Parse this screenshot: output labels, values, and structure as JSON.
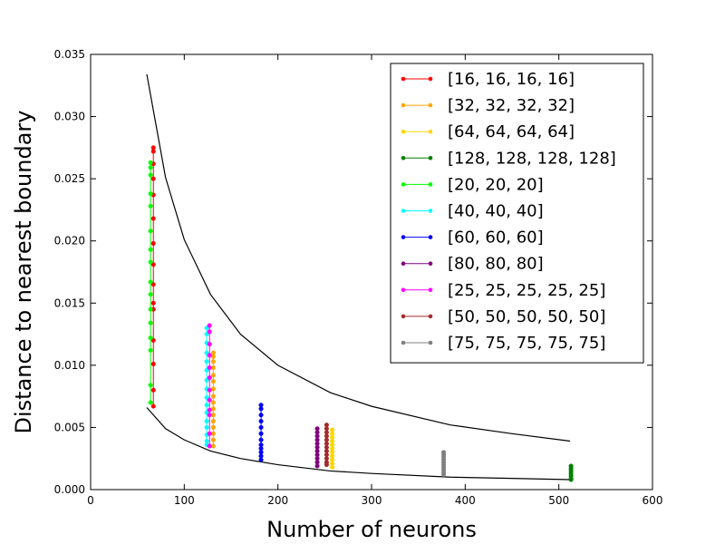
{
  "chart_data": {
    "type": "scatter",
    "title": "",
    "xlabel": "Number of neurons",
    "ylabel": "Distance to nearest boundary",
    "xlim": [
      0,
      600
    ],
    "ylim": [
      0,
      0.035
    ],
    "xticks": [
      "0",
      "100",
      "200",
      "300",
      "400",
      "500",
      "600"
    ],
    "yticks": [
      "0.000",
      "0.005",
      "0.010",
      "0.015",
      "0.020",
      "0.025",
      "0.030",
      "0.035"
    ],
    "grid": false,
    "legend_position": "top-right",
    "bound_curves": [
      {
        "x": [
          60,
          80,
          100,
          128,
          160,
          200,
          256,
          300,
          384,
          450,
          512
        ],
        "y": [
          0.0334,
          0.0251,
          0.0201,
          0.0157,
          0.0125,
          0.01,
          0.0078,
          0.0067,
          0.0052,
          0.0045,
          0.0039
        ]
      },
      {
        "x": [
          60,
          80,
          100,
          128,
          160,
          200,
          256,
          300,
          384,
          450,
          512
        ],
        "y": [
          0.0066,
          0.0049,
          0.004,
          0.0031,
          0.0025,
          0.002,
          0.0015,
          0.0013,
          0.001,
          0.0009,
          0.0008
        ]
      }
    ],
    "series": [
      {
        "name": "[16, 16, 16, 16]",
        "color": "#ff0000",
        "x": 67,
        "values": [
          0.0275,
          0.0272,
          0.0262,
          0.025,
          0.0237,
          0.0218,
          0.0198,
          0.0181,
          0.0165,
          0.015,
          0.0145,
          0.012,
          0.0101,
          0.008,
          0.0067
        ]
      },
      {
        "name": "[32, 32, 32, 32]",
        "color": "#ffa500",
        "x": 131,
        "values": [
          0.011,
          0.0107,
          0.0103,
          0.0098,
          0.0092,
          0.0087,
          0.0081,
          0.0075,
          0.007,
          0.0065,
          0.006,
          0.0055,
          0.005,
          0.0045,
          0.004,
          0.0035
        ]
      },
      {
        "name": "[64, 64, 64, 64]",
        "color": "#ffd700",
        "x": 258,
        "values": [
          0.0048,
          0.0045,
          0.0042,
          0.0039,
          0.0036,
          0.0033,
          0.003,
          0.0027,
          0.0024,
          0.0021,
          0.0018
        ]
      },
      {
        "name": "[128, 128, 128, 128]",
        "color": "#008000",
        "x": 513,
        "values": [
          0.0019,
          0.0017,
          0.0015,
          0.0013,
          0.0011,
          0.0009,
          0.0008
        ]
      },
      {
        "name": "[20, 20, 20]",
        "color": "#00ff00",
        "x": 64,
        "values": [
          0.0263,
          0.0259,
          0.0253,
          0.0238,
          0.0228,
          0.0208,
          0.0193,
          0.0183,
          0.0167,
          0.0157,
          0.0145,
          0.0134,
          0.0122,
          0.0112,
          0.0084,
          0.007
        ]
      },
      {
        "name": "[40, 40, 40]",
        "color": "#00ffff",
        "x": 124,
        "values": [
          0.013,
          0.0125,
          0.0118,
          0.011,
          0.0103,
          0.0096,
          0.0088,
          0.0081,
          0.0074,
          0.0068,
          0.0062,
          0.0055,
          0.005,
          0.0044,
          0.0039,
          0.0036
        ]
      },
      {
        "name": "[60, 60, 60]",
        "color": "#0000ff",
        "x": 182,
        "values": [
          0.0068,
          0.0065,
          0.006,
          0.0055,
          0.005,
          0.0045,
          0.004,
          0.0036,
          0.0033,
          0.003,
          0.0027,
          0.0024
        ]
      },
      {
        "name": "[80, 80, 80]",
        "color": "#800080",
        "x": 242,
        "values": [
          0.0049,
          0.0046,
          0.0043,
          0.004,
          0.0037,
          0.0034,
          0.0031,
          0.0028,
          0.0025,
          0.0022,
          0.0019
        ]
      },
      {
        "name": "[25, 25, 25, 25, 25]",
        "color": "#ff00ff",
        "x": 127,
        "values": [
          0.0132,
          0.0127,
          0.0117,
          0.0108,
          0.0098,
          0.009,
          0.008,
          0.0072,
          0.0064,
          0.006,
          0.0045,
          0.0035
        ]
      },
      {
        "name": "[50, 50, 50, 50, 50]",
        "color": "#a52a2a",
        "x": 252,
        "values": [
          0.0052,
          0.0049,
          0.0046,
          0.0043,
          0.004,
          0.0037,
          0.0034,
          0.0031,
          0.0028,
          0.0025,
          0.0022,
          0.002
        ]
      },
      {
        "name": "[75, 75, 75, 75, 75]",
        "color": "#808080",
        "x": 377,
        "values": [
          0.003,
          0.0028,
          0.0026,
          0.0024,
          0.0022,
          0.002,
          0.0018,
          0.0016,
          0.0014,
          0.0012
        ]
      }
    ]
  }
}
